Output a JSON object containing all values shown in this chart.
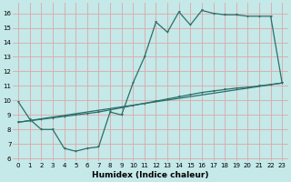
{
  "title": "",
  "xlabel": "Humidex (Indice chaleur)",
  "bg_color": "#c5e8e8",
  "grid_color": "#dba8a8",
  "line_color": "#2a7068",
  "xlim": [
    -0.5,
    23.5
  ],
  "ylim": [
    5.8,
    16.7
  ],
  "xticks": [
    0,
    1,
    2,
    3,
    4,
    5,
    6,
    7,
    8,
    9,
    10,
    11,
    12,
    13,
    14,
    15,
    16,
    17,
    18,
    19,
    20,
    21,
    22,
    23
  ],
  "yticks": [
    6,
    7,
    8,
    9,
    10,
    11,
    12,
    13,
    14,
    15,
    16
  ],
  "line1_x": [
    0,
    1,
    2,
    3,
    4,
    5,
    6,
    7,
    8,
    9,
    10,
    11,
    12,
    13,
    14,
    15,
    16,
    17,
    18,
    19,
    20,
    21,
    22,
    23
  ],
  "line1_y": [
    9.9,
    8.7,
    8.0,
    8.0,
    6.7,
    6.5,
    6.7,
    6.8,
    9.2,
    9.0,
    11.2,
    13.0,
    15.4,
    14.7,
    16.1,
    15.2,
    16.2,
    16.0,
    15.9,
    15.9,
    15.8,
    15.8,
    15.8,
    11.2
  ],
  "line2_x": [
    0,
    1,
    2,
    3,
    4,
    5,
    6,
    7,
    8,
    9,
    10,
    11,
    12,
    13,
    14,
    15,
    16,
    17,
    18,
    19,
    20,
    21,
    22,
    23
  ],
  "line2_y": [
    8.5,
    8.6,
    8.7,
    8.8,
    8.9,
    9.0,
    9.1,
    9.2,
    9.35,
    9.5,
    9.65,
    9.8,
    9.95,
    10.1,
    10.25,
    10.4,
    10.55,
    10.65,
    10.75,
    10.85,
    10.9,
    11.0,
    11.1,
    11.2
  ],
  "line3_x": [
    0,
    23
  ],
  "line3_y": [
    8.5,
    11.2
  ],
  "lw": 0.9,
  "ms": 2.0,
  "xlabel_fontsize": 6.5,
  "tick_fontsize": 5.0
}
